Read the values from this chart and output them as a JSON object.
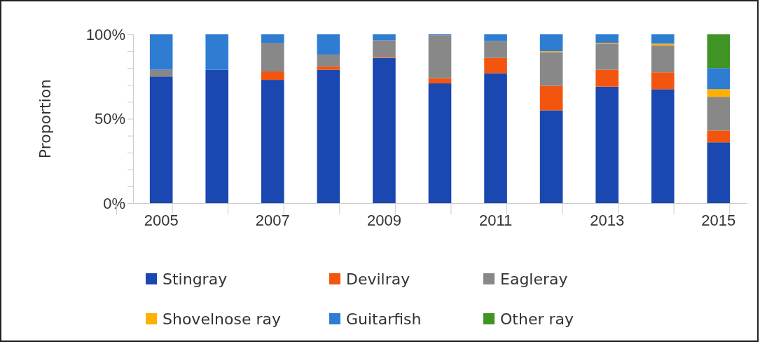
{
  "chart_data": {
    "type": "bar",
    "stacked": true,
    "ylabel": "Proportion",
    "categories": [
      "2005",
      null,
      "2007",
      null,
      "2009",
      null,
      "2011",
      null,
      "2013",
      null,
      "2015"
    ],
    "series": [
      {
        "name": "Stingray",
        "color": "#1a47b0",
        "values": [
          75,
          79,
          73,
          79,
          86,
          71,
          77,
          55,
          69,
          67.5,
          36
        ]
      },
      {
        "name": "Devilray",
        "color": "#f4550e",
        "values": [
          0,
          0,
          5,
          2,
          0.5,
          3,
          9,
          14.5,
          10,
          10,
          7
        ]
      },
      {
        "name": "Eagleray",
        "color": "#888888",
        "values": [
          4,
          0,
          17,
          7,
          10,
          25.5,
          10,
          20,
          15.5,
          16,
          20
        ]
      },
      {
        "name": "Shovelnose ray",
        "color": "#ffb000",
        "values": [
          0,
          0,
          0,
          0,
          0,
          0,
          0,
          0.5,
          0.5,
          1,
          4.5
        ]
      },
      {
        "name": "Guitarfish",
        "color": "#2e7dd2",
        "values": [
          21,
          21,
          5,
          12,
          3.5,
          0.5,
          4,
          10,
          5,
          5.5,
          12.5
        ]
      },
      {
        "name": "Other ray",
        "color": "#3f9424",
        "values": [
          0,
          0,
          0,
          0,
          0,
          0,
          0,
          0,
          0,
          0,
          20
        ]
      }
    ],
    "ylim": [
      0,
      100
    ],
    "yticks": [
      {
        "value": 0,
        "label": "0%"
      },
      {
        "value": 10,
        "label": null
      },
      {
        "value": 20,
        "label": null
      },
      {
        "value": 30,
        "label": null
      },
      {
        "value": 40,
        "label": null
      },
      {
        "value": 50,
        "label": "50%"
      },
      {
        "value": 60,
        "label": null
      },
      {
        "value": 70,
        "label": null
      },
      {
        "value": 80,
        "label": null
      },
      {
        "value": 90,
        "label": null
      },
      {
        "value": 100,
        "label": "100%"
      }
    ],
    "grid": false,
    "legend": "bottom"
  }
}
